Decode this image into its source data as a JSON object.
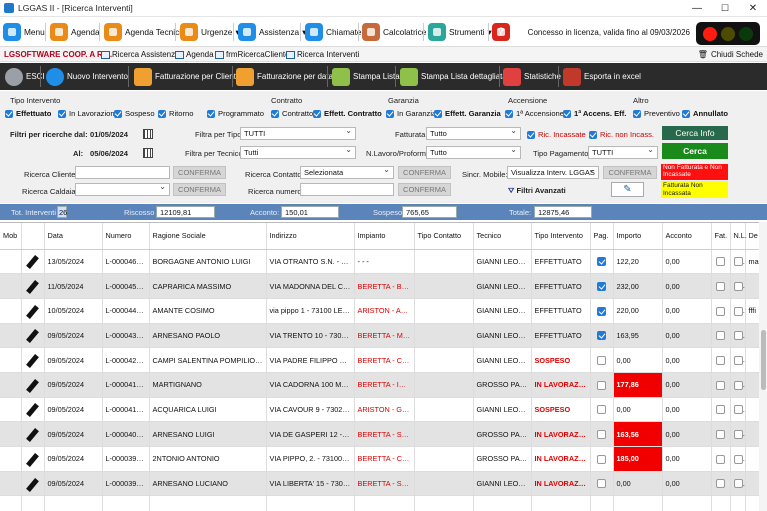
{
  "window": {
    "title": "LGGAS II - [Ricerca Interventi]",
    "min": "—",
    "max": "☐",
    "close": "✕"
  },
  "toolbar": {
    "menu": "Menu",
    "agenda": "Agenda",
    "agenda_tecnici": "Agenda Tecnici",
    "urgenze": "Urgenze",
    "assistenza": "Assistenza",
    "chiamate": "Chiamate",
    "calcolatrice": "Calcolatrice",
    "strumenti": "Strumenti",
    "help": "?",
    "dropdown": "▾",
    "license": "Concesso in licenza, valida fino al 09/03/2026"
  },
  "tabs": {
    "company": "LGSOFTWARE COOP. A R.L.",
    "items": [
      "Ricerca Assistenze",
      "Agenda",
      "frmRicercaCliente",
      "Ricerca Interventi"
    ],
    "close_all": "Chiudi Schede"
  },
  "actions": {
    "esci": "ESCI",
    "nuovo": "Nuovo Intervento",
    "fatt_cliente": "Fatturazione per Cliente",
    "fatt_data": "Fatturazione per data",
    "stampa": "Stampa Lista",
    "stampa_dett": "Stampa Lista dettagliata",
    "statistiche": "Statistiche",
    "excel": "Esporta in excel"
  },
  "filters": {
    "tipo_title": "Tipo Intervento",
    "contratto_title": "Contratto",
    "garanzia_title": "Garanzia",
    "accensione_title": "Accensione",
    "altro_title": "Altro",
    "tipo": [
      "Effettuato",
      "In Lavorazione",
      "Sospeso",
      "Ritorno",
      "Programmato"
    ],
    "contratto": [
      "Contratto",
      "Effett. Contratto"
    ],
    "garanzia": [
      "In Garanzia",
      "Effett. Garanzia"
    ],
    "accensione": [
      "1ª Accensione",
      "1ª Accens. Eff."
    ],
    "altro": [
      "Preventivo",
      "Annullato"
    ],
    "dal_label": "Filtri per ricerche dal:",
    "dal": "01/05/2024",
    "al_label": "Al:",
    "al": "05/06/2024",
    "tipo_label": "Filtra per Tipo:",
    "tipo_value": "TUTTI",
    "tecnico_label": "Filtra per Tecnico:",
    "tecnico_value": "Tutti",
    "fatturata_label": "Fatturata:",
    "fatturata_value": "Tutto",
    "nlavoro_label": "N.Lavoro/Proforma:",
    "nlavoro_value": "Tutto",
    "ric_incassate": "Ric. Incassate",
    "ric_non_incass": "Ric. non Incass.",
    "tipo_pagamento_label": "Tipo Pagamento:",
    "tipo_pagamento_value": "TUTTI",
    "cerca_info": "Cerca Info",
    "cerca": "Cerca",
    "cliente_label": "Ricerca Cliente:",
    "caldaia_label": "Ricerca Caldaia:",
    "contatto_label": "Ricerca Contatto:",
    "contatto_value": "Selezionata",
    "numero_label": "Ricerca numero:",
    "sincr_label": "Sincr. Mobile:",
    "sincr_value": "Visualizza Interv. LGGAS",
    "conferma": "CONFERMA",
    "filtri_avanzati": "Filtri Avanzati",
    "legend_red": "Non Fatturata e Non Incassate",
    "legend_yellow": "Fatturata Non Incassata"
  },
  "totals": {
    "tot_label": "Tot. Interventi",
    "tot": "26",
    "riscosso_label": "Riscosso",
    "riscosso": "12109,81",
    "acconto_label": "Acconto:",
    "acconto": "150,01",
    "sospeso_label": "Sospeso:",
    "sospeso": "765,65",
    "totale_label": "Totale:",
    "totale": "12875,46"
  },
  "columns": [
    "Mob",
    "Data",
    "Numero",
    "Ragione Sociale",
    "Indirizzo",
    "Impianto",
    "Tipo Contatto",
    "Tecnico",
    "Tipo Intervento",
    "Pag.",
    "Importo",
    "Acconto",
    "Fat.",
    "N.L.",
    "De"
  ],
  "rows": [
    {
      "data": "13/05/2024",
      "numero": "L-000046/24",
      "ragione": "BORGAGNE ANTONIO LUIGI",
      "indirizzo": "VIA OTRANTO S.N. - 7302...",
      "impianto": "- - -",
      "contatto": "",
      "tecnico": "GIANNI LEONE",
      "tipo": "EFFETTUATO",
      "pag": true,
      "importo": "122,20",
      "acconto": "0,00",
      "de": "ma"
    },
    {
      "data": "11/05/2024",
      "numero": "L-000045/24",
      "ragione": "CAPRARICA MASSIMO",
      "indirizzo": "VIA MADONNA DEL CARM...",
      "impianto": "BERETTA - BOIL...",
      "contatto": "",
      "tecnico": "GIANNI LEONE",
      "tipo": "EFFETTUATO",
      "pag": true,
      "importo": "232,00",
      "acconto": "0,00",
      "de": ""
    },
    {
      "data": "10/05/2024",
      "numero": "L-000044/24",
      "ragione": "AMANTE COSIMO",
      "indirizzo": "via pippo 1 - 73100 LECCE ...",
      "impianto": "ARISTON - AS 2...",
      "contatto": "",
      "tecnico": "GIANNI LEONE",
      "tipo": "EFFETTUATO",
      "pag": true,
      "importo": "220,00",
      "acconto": "0,00",
      "de": "fffi"
    },
    {
      "data": "09/05/2024",
      "numero": "L-000043/24",
      "ragione": "ARNESANO PAOLO",
      "indirizzo": "VIA TRENTO 10 - 73010 A...",
      "impianto": "BERETTA - MET...",
      "contatto": "",
      "tecnico": "GIANNI LEONE",
      "tipo": "EFFETTUATO",
      "pag": true,
      "importo": "163,95",
      "acconto": "0,00",
      "de": ""
    },
    {
      "data": "09/05/2024",
      "numero": "L-000042/24",
      "ragione": "CAMPI SALENTINA POMPILIO MASS...",
      "indirizzo": "VIA PADRE FILIPPO CIOT...",
      "impianto": "BERETTA - CIA...",
      "contatto": "",
      "tecnico": "GIANNI LEONE",
      "tipo": "SOSPESO",
      "pag": false,
      "importo": "0,00",
      "acconto": "0,00",
      "de": ""
    },
    {
      "data": "09/05/2024",
      "numero": "L-000041/L/24",
      "ragione": "MARTIGNANO",
      "indirizzo": "VIA CADORNA 100 MARTI...",
      "impianto": "BERETTA - IDR...",
      "contatto": "",
      "tecnico": "GROSSO PAOLO",
      "tipo": "IN LAVORAZI...",
      "pag": false,
      "importo": "177,86",
      "acconto": "0,00",
      "de": ""
    },
    {
      "data": "09/05/2024",
      "numero": "L-000041/24",
      "ragione": "ACQUARICA LUIGI",
      "indirizzo": "VIA CAVOUR 9 - 73029 AC...",
      "impianto": "ARISTON - GEN...",
      "contatto": "",
      "tecnico": "GIANNI LEONE",
      "tipo": "SOSPESO",
      "pag": false,
      "importo": "0,00",
      "acconto": "0,00",
      "de": ""
    },
    {
      "data": "09/05/2024",
      "numero": "L-000040/L/24",
      "ragione": "ARNESANO LUIGI",
      "indirizzo": "VIA DE GASPERI 12 - 7301...",
      "impianto": "BERETTA - SUP...",
      "contatto": "",
      "tecnico": "GROSSO PAOLO",
      "tipo": "IN LAVORAZI...",
      "pag": false,
      "importo": "163,56",
      "acconto": "0,00",
      "de": ""
    },
    {
      "data": "09/05/2024",
      "numero": "L-000039/L/24",
      "ragione": "2NTONIO ANTONIO",
      "indirizzo": "VIA PIPPO, 2. - 73100 LE...",
      "impianto": "BERETTA - CIA...",
      "contatto": "",
      "tecnico": "GROSSO PAOLO",
      "tipo": "IN LAVORAZI...",
      "pag": false,
      "importo": "185,00",
      "acconto": "0,00",
      "de": ""
    },
    {
      "data": "09/05/2024",
      "numero": "L-000039/24",
      "ragione": "ARNESANO LUCIANO",
      "indirizzo": "VIA LIBERTA' 15 - 73010 A...",
      "impianto": "BERETTA - S.EX...",
      "contatto": "",
      "tecnico": "GIANNI LEONE",
      "tipo": "IN LAVORAZI...",
      "pag": false,
      "importo": "0,00",
      "acconto": "0,00",
      "de": ""
    },
    {
      "data": "",
      "numero": "",
      "ragione": "",
      "indirizzo": "",
      "impianto": "",
      "contatto": "",
      "tecnico": "",
      "tipo": "",
      "pag": false,
      "importo": "",
      "acconto": "",
      "de": ""
    }
  ],
  "colors": {
    "red_status": "#e10000",
    "red_cell": "#f20000",
    "alt_row": "#e3e3e3",
    "totals_bar": "#5b84ba",
    "dark_toolbar": "#2b2b2b"
  }
}
